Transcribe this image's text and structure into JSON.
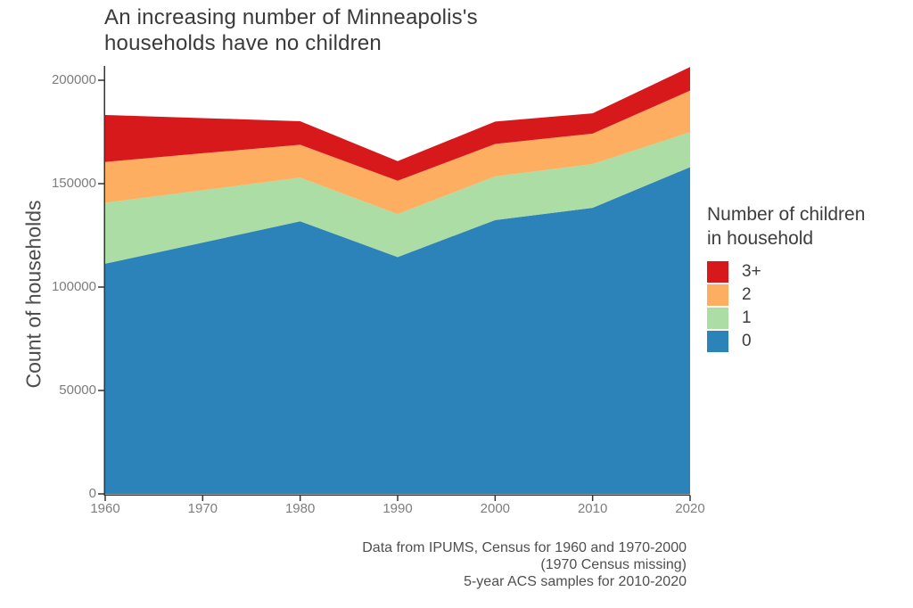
{
  "title": {
    "line1": "An increasing number of Minneapolis's",
    "line2": "households have no children"
  },
  "legend": {
    "title_line1": "Number of children",
    "title_line2": "in household",
    "entries": [
      {
        "label": "3+",
        "color": "#d7191c"
      },
      {
        "label": "2",
        "color": "#fdae61"
      },
      {
        "label": "1",
        "color": "#abdda4"
      },
      {
        "label": "0",
        "color": "#2b83ba"
      }
    ]
  },
  "caption": {
    "line1": "Data from IPUMS, Census for 1960 and 1970-2000",
    "line2": "(1970 Census missing)",
    "line3": "5-year ACS samples for 2010-2020"
  },
  "colors": {
    "axis": "#333333",
    "tick_label": "#7d7d7d",
    "title_text": "#3a3a3a",
    "body_text": "#4d4d4d"
  },
  "chart_data": {
    "type": "area",
    "stacked": true,
    "title": "An increasing number of Minneapolis's households have no children",
    "ylabel": "Count of households",
    "xlabel": "",
    "x": [
      1960,
      1970,
      1980,
      1990,
      2000,
      2010,
      2020
    ],
    "series": [
      {
        "name": "0",
        "color": "#2b83ba",
        "values": [
          111300,
          121500,
          131800,
          114500,
          132400,
          138300,
          158000
        ]
      },
      {
        "name": "1",
        "color": "#abdda4",
        "values": [
          29500,
          25300,
          21100,
          20800,
          21100,
          21200,
          16900
        ]
      },
      {
        "name": "2",
        "color": "#fdae61",
        "values": [
          19700,
          17900,
          15900,
          16100,
          15700,
          14700,
          20100
        ]
      },
      {
        "name": "3+",
        "color": "#d7191c",
        "values": [
          22700,
          17000,
          11400,
          9500,
          10800,
          9800,
          11400
        ]
      }
    ],
    "totals": [
      183200,
      181700,
      180200,
      160900,
      180000,
      184000,
      206400
    ],
    "xlim": [
      1960,
      2020
    ],
    "ylim": [
      0,
      206900
    ],
    "xticks": [
      1960,
      1970,
      1980,
      1990,
      2000,
      2010,
      2020
    ],
    "yticks": [
      0,
      50000,
      100000,
      150000,
      200000
    ],
    "grid": false,
    "legend_title": "Number of children in household",
    "legend_position": "right"
  }
}
